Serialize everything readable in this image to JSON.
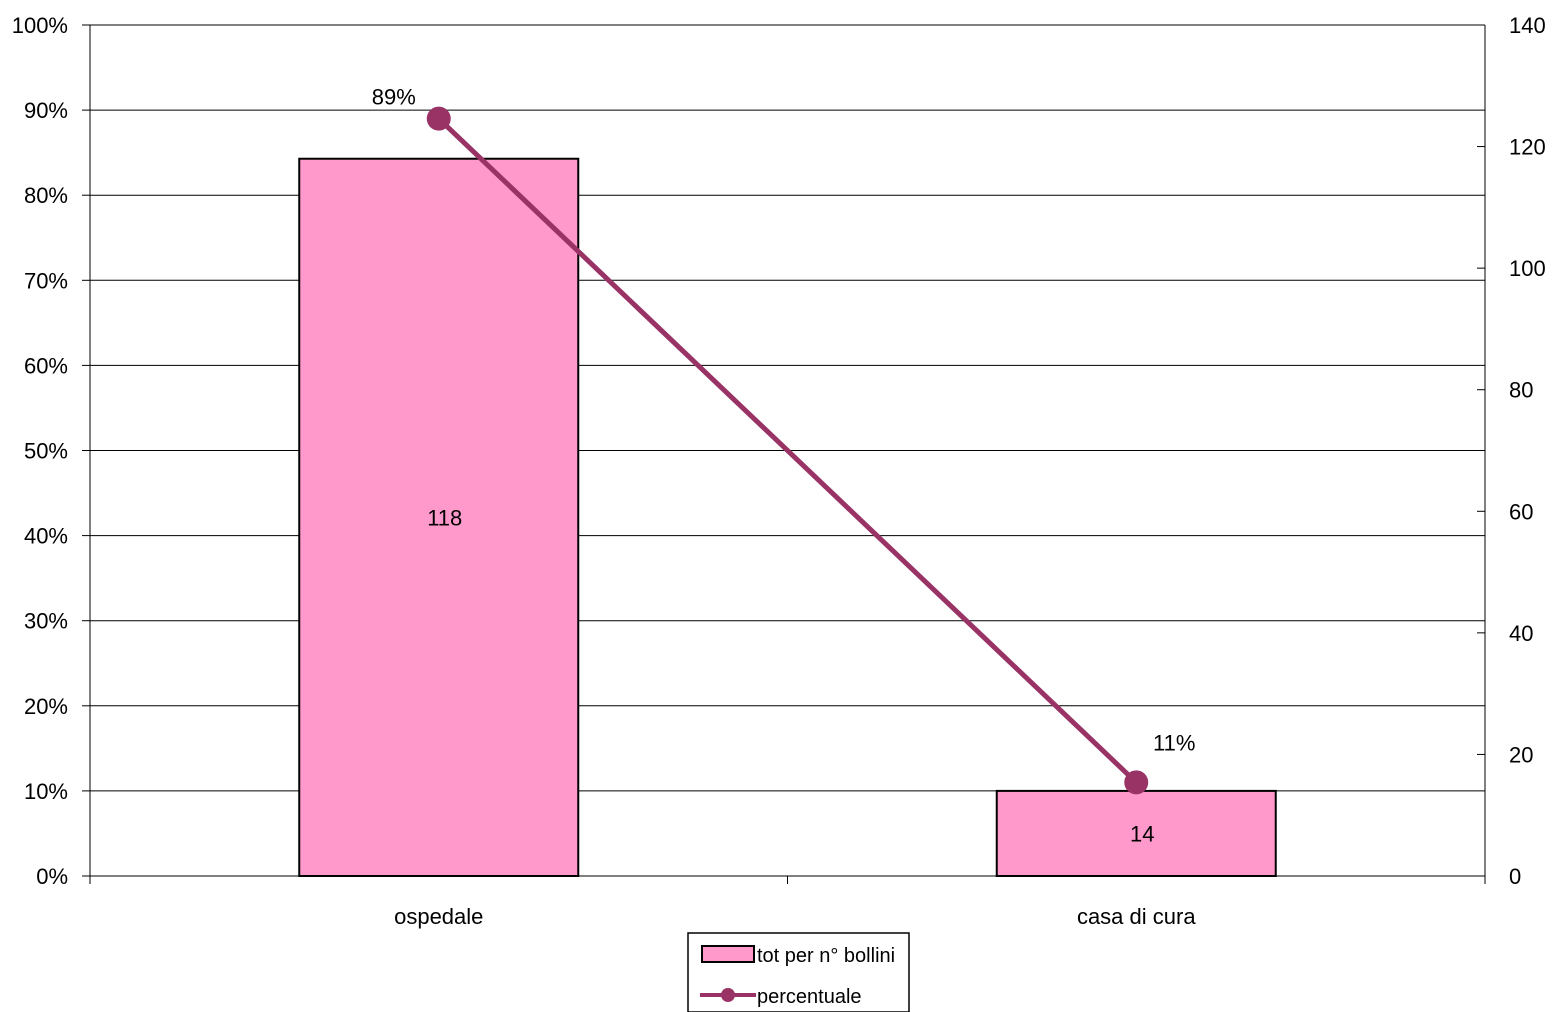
{
  "chart_data": {
    "type": "bar",
    "categories": [
      "ospedale",
      "casa di cura"
    ],
    "series": [
      {
        "name": "tot per n° bollini",
        "type": "bar",
        "axis": "right",
        "values": [
          118,
          14
        ],
        "value_labels": [
          "118",
          "14"
        ],
        "color": "#FF99CC"
      },
      {
        "name": "percentuale",
        "type": "line",
        "axis": "left",
        "values": [
          0.89,
          0.11
        ],
        "value_labels": [
          "89%",
          "11%"
        ],
        "color": "#993366"
      }
    ],
    "left_axis": {
      "ylim": [
        0,
        1
      ],
      "ticks": [
        0,
        0.1,
        0.2,
        0.3,
        0.4,
        0.5,
        0.6,
        0.7,
        0.8,
        0.9,
        1
      ],
      "tick_labels": [
        "0%",
        "10%",
        "20%",
        "30%",
        "40%",
        "50%",
        "60%",
        "70%",
        "80%",
        "90%",
        "100%"
      ]
    },
    "right_axis": {
      "ylim": [
        0,
        140
      ],
      "ticks": [
        0,
        20,
        40,
        60,
        80,
        100,
        120,
        140
      ],
      "tick_labels": [
        "0",
        "20",
        "40",
        "60",
        "80",
        "100",
        "120",
        "140"
      ]
    },
    "grid": true,
    "legend": "bottom"
  }
}
